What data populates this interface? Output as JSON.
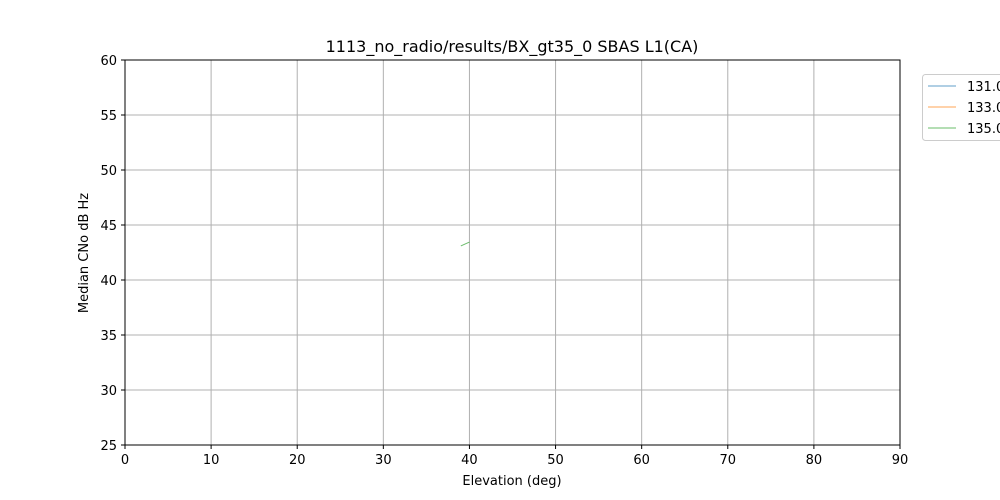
{
  "chart_data": {
    "type": "line",
    "title": "1113_no_radio/results/BX_gt35_0 SBAS L1(CA)",
    "xlabel": "Elevation (deg)",
    "ylabel": "Median CNo dB Hz",
    "xlim": [
      0,
      90
    ],
    "ylim": [
      25,
      60
    ],
    "xticks": [
      0,
      10,
      20,
      30,
      40,
      50,
      60,
      70,
      80,
      90
    ],
    "yticks": [
      25,
      30,
      35,
      40,
      45,
      50,
      55,
      60
    ],
    "grid": true,
    "legend_placement": "outside-top-right",
    "series": [
      {
        "name": "131.0",
        "color": "#1f77b4",
        "points": []
      },
      {
        "name": "133.0",
        "color": "#ff7f0e",
        "points": []
      },
      {
        "name": "135.0",
        "color": "#2ca02c",
        "points": [
          [
            39,
            43.1
          ],
          [
            40,
            43.45
          ]
        ]
      }
    ]
  }
}
